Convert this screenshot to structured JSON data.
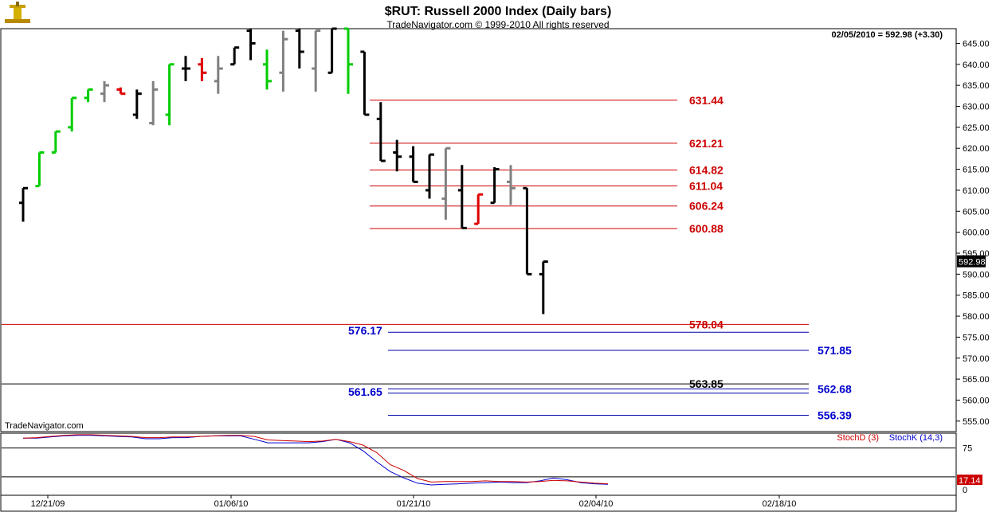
{
  "chart_data": {
    "type": "bar",
    "title": "$RUT:  Russell 2000 Index  (Daily bars)",
    "subtitle": "TradeNavigator.com © 1999-2010 All rights reserved",
    "quote": "02/05/2010 = 592.98 (+3.30)",
    "watermark": "TradeNavigator.com",
    "last_price_label": "592.98",
    "ylim": [
      552.5,
      648.5
    ],
    "yticks": [
      "645.00",
      "640.00",
      "635.00",
      "630.00",
      "625.00",
      "620.00",
      "615.00",
      "610.00",
      "605.00",
      "600.00",
      "595.00",
      "590.00",
      "585.00",
      "580.00",
      "575.00",
      "570.00",
      "565.00",
      "560.00",
      "555.00"
    ],
    "xticks": [
      "12/21/09",
      "01/06/10",
      "01/21/10",
      "02/04/10",
      "02/18/10"
    ],
    "bars": [
      {
        "o": 607,
        "h": 610.5,
        "l": 602.5,
        "c": 610.5,
        "col": "black"
      },
      {
        "o": 611,
        "h": 619,
        "l": 611,
        "c": 619,
        "col": "green"
      },
      {
        "o": 619,
        "h": 624,
        "l": 619,
        "c": 624,
        "col": "green"
      },
      {
        "o": 625,
        "h": 632,
        "l": 624,
        "c": 632,
        "col": "green"
      },
      {
        "o": 632,
        "h": 634,
        "l": 631,
        "c": 634,
        "col": "green"
      },
      {
        "o": 633,
        "h": 636,
        "l": 631,
        "c": 635,
        "col": "gray"
      },
      {
        "o": 634,
        "h": 634.5,
        "l": 633,
        "c": 633,
        "col": "red"
      },
      {
        "o": 628,
        "h": 634,
        "l": 627,
        "c": 633,
        "col": "black"
      },
      {
        "o": 626,
        "h": 636,
        "l": 625.5,
        "c": 634,
        "col": "gray"
      },
      {
        "o": 628,
        "h": 640,
        "l": 625.5,
        "c": 640,
        "col": "green"
      },
      {
        "o": 639,
        "h": 642,
        "l": 636,
        "c": 639,
        "col": "black"
      },
      {
        "o": 640,
        "h": 641.5,
        "l": 636,
        "c": 638,
        "col": "red"
      },
      {
        "o": 636,
        "h": 642,
        "l": 633,
        "c": 639,
        "col": "gray"
      },
      {
        "o": 640,
        "h": 644,
        "l": 640,
        "c": 644,
        "col": "black"
      },
      {
        "o": 648,
        "h": 648.5,
        "l": 641,
        "c": 645,
        "col": "black"
      },
      {
        "o": 640,
        "h": 643.5,
        "l": 634,
        "c": 636,
        "col": "green"
      },
      {
        "o": 638,
        "h": 648,
        "l": 633.5,
        "c": 646,
        "col": "gray"
      },
      {
        "o": 648,
        "h": 648.5,
        "l": 639,
        "c": 643,
        "col": "black"
      },
      {
        "o": 639,
        "h": 648,
        "l": 633.5,
        "c": 648,
        "col": "gray"
      },
      {
        "o": 638,
        "h": 648.5,
        "l": 638,
        "c": 648.5,
        "col": "black"
      },
      {
        "o": 648.5,
        "h": 648.5,
        "l": 633,
        "c": 640,
        "col": "green"
      },
      {
        "o": 643,
        "h": 643,
        "l": 628,
        "c": 628,
        "col": "black"
      },
      {
        "o": 627,
        "h": 631,
        "l": 617,
        "c": 617,
        "col": "black"
      },
      {
        "o": 619,
        "h": 622,
        "l": 614.5,
        "c": 618,
        "col": "black"
      },
      {
        "o": 618,
        "h": 620.5,
        "l": 612,
        "c": 612,
        "col": "black"
      },
      {
        "o": 610,
        "h": 618.5,
        "l": 608,
        "c": 618.5,
        "col": "black"
      },
      {
        "o": 608,
        "h": 620,
        "l": 603,
        "c": 620,
        "col": "gray"
      },
      {
        "o": 610,
        "h": 616,
        "l": 601,
        "c": 601,
        "col": "black"
      },
      {
        "o": 602,
        "h": 609,
        "l": 602,
        "c": 609,
        "col": "red"
      },
      {
        "o": 607,
        "h": 615.5,
        "l": 607,
        "c": 615,
        "col": "black"
      },
      {
        "o": 612,
        "h": 616,
        "l": 606.5,
        "c": 610.5,
        "col": "gray"
      },
      {
        "o": 610.5,
        "h": 610.5,
        "l": 590,
        "c": 590,
        "col": "black"
      },
      {
        "o": 590,
        "h": 593,
        "l": 580.5,
        "c": 593,
        "col": "black"
      }
    ],
    "levels": [
      {
        "value": 631.44,
        "label": "631.44",
        "color": "red"
      },
      {
        "value": 621.21,
        "label": "621.21",
        "color": "red"
      },
      {
        "value": 614.82,
        "label": "614.82",
        "color": "red"
      },
      {
        "value": 611.04,
        "label": "611.04",
        "color": "red"
      },
      {
        "value": 606.24,
        "label": "606.24",
        "color": "red"
      },
      {
        "value": 600.88,
        "label": "600.88",
        "color": "red"
      },
      {
        "value": 578.04,
        "label": "578.04",
        "color": "red",
        "full": true
      },
      {
        "value": 576.17,
        "label": "576.17",
        "color": "blue",
        "left_label": true
      },
      {
        "value": 571.85,
        "label": "571.85",
        "color": "blue"
      },
      {
        "value": 563.85,
        "label": "563.85",
        "color": "black",
        "full": true
      },
      {
        "value": 562.68,
        "label": "562.68",
        "color": "blue"
      },
      {
        "value": 561.65,
        "label": "561.65",
        "color": "blue",
        "left_label": true
      },
      {
        "value": 556.39,
        "label": "556.39",
        "color": "blue"
      }
    ],
    "stochastic": {
      "legend": [
        "StochD (3)",
        "StochK (14,3)"
      ],
      "yticks": [
        "75",
        "0"
      ],
      "last_label": "17.14",
      "stoch_d": [
        92,
        93,
        95,
        97,
        98,
        98,
        97,
        96,
        95,
        93,
        93,
        94,
        94,
        95,
        96,
        97,
        97,
        95,
        89,
        88,
        87,
        86,
        87,
        90,
        86,
        80,
        67,
        46,
        36,
        22,
        16,
        17,
        17,
        17,
        18,
        17,
        17,
        16,
        17,
        19,
        18,
        16,
        14,
        13
      ],
      "stoch_k": [
        92,
        92,
        94,
        96,
        97,
        97,
        96,
        95,
        94,
        91,
        91,
        93,
        93,
        95,
        96,
        96,
        96,
        90,
        84,
        84,
        84,
        84,
        86,
        90,
        84,
        70,
        51,
        34,
        23,
        14,
        11,
        12,
        13,
        14,
        15,
        16,
        15,
        15,
        18,
        23,
        20,
        15,
        13,
        12
      ]
    }
  }
}
